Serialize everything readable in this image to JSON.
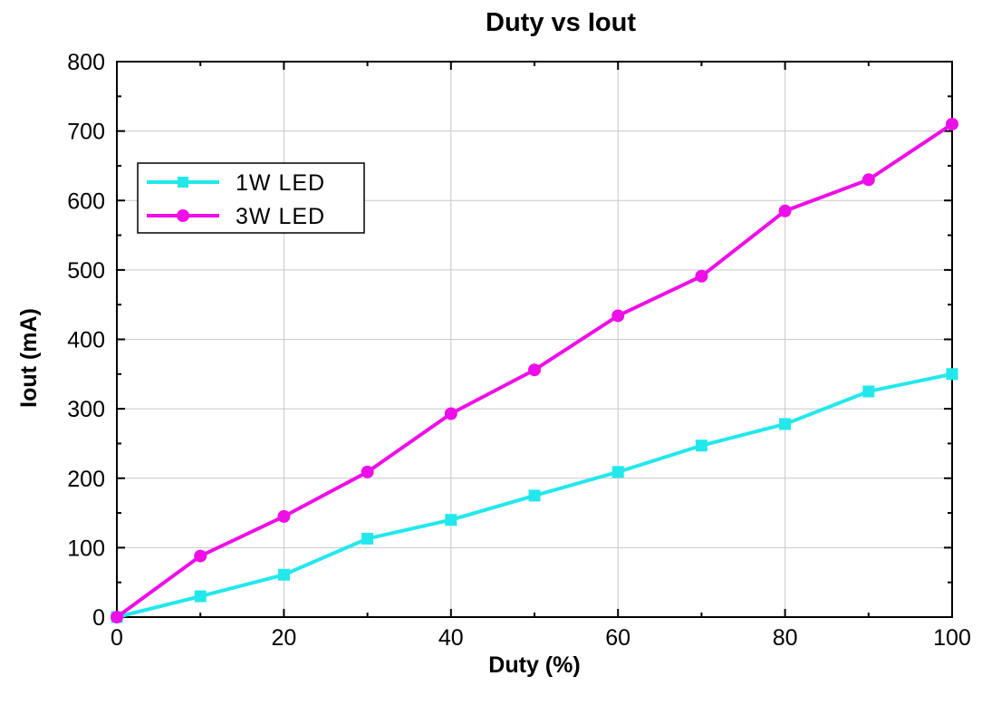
{
  "chart_data": {
    "type": "line",
    "title": "Duty vs Iout",
    "xlabel": "Duty (%)",
    "ylabel": "Iout (mA)",
    "xlim": [
      0,
      100
    ],
    "ylim": [
      0,
      800
    ],
    "x_ticks": [
      0,
      20,
      40,
      60,
      80,
      100
    ],
    "y_ticks": [
      0,
      100,
      200,
      300,
      400,
      500,
      600,
      700,
      800
    ],
    "grid": true,
    "legend_position": "top-left",
    "x": [
      0,
      10,
      20,
      30,
      40,
      50,
      60,
      70,
      80,
      90,
      100
    ],
    "series": [
      {
        "name": "1W LED",
        "color": "#22e8ec",
        "marker": "square",
        "values": [
          0,
          30,
          61,
          113,
          140,
          175,
          209,
          247,
          278,
          325,
          350
        ]
      },
      {
        "name": "3W LED",
        "color": "#ee0ee8",
        "marker": "circle",
        "values": [
          0,
          88,
          145,
          209,
          293,
          356,
          434,
          491,
          585,
          630,
          710
        ]
      }
    ]
  }
}
